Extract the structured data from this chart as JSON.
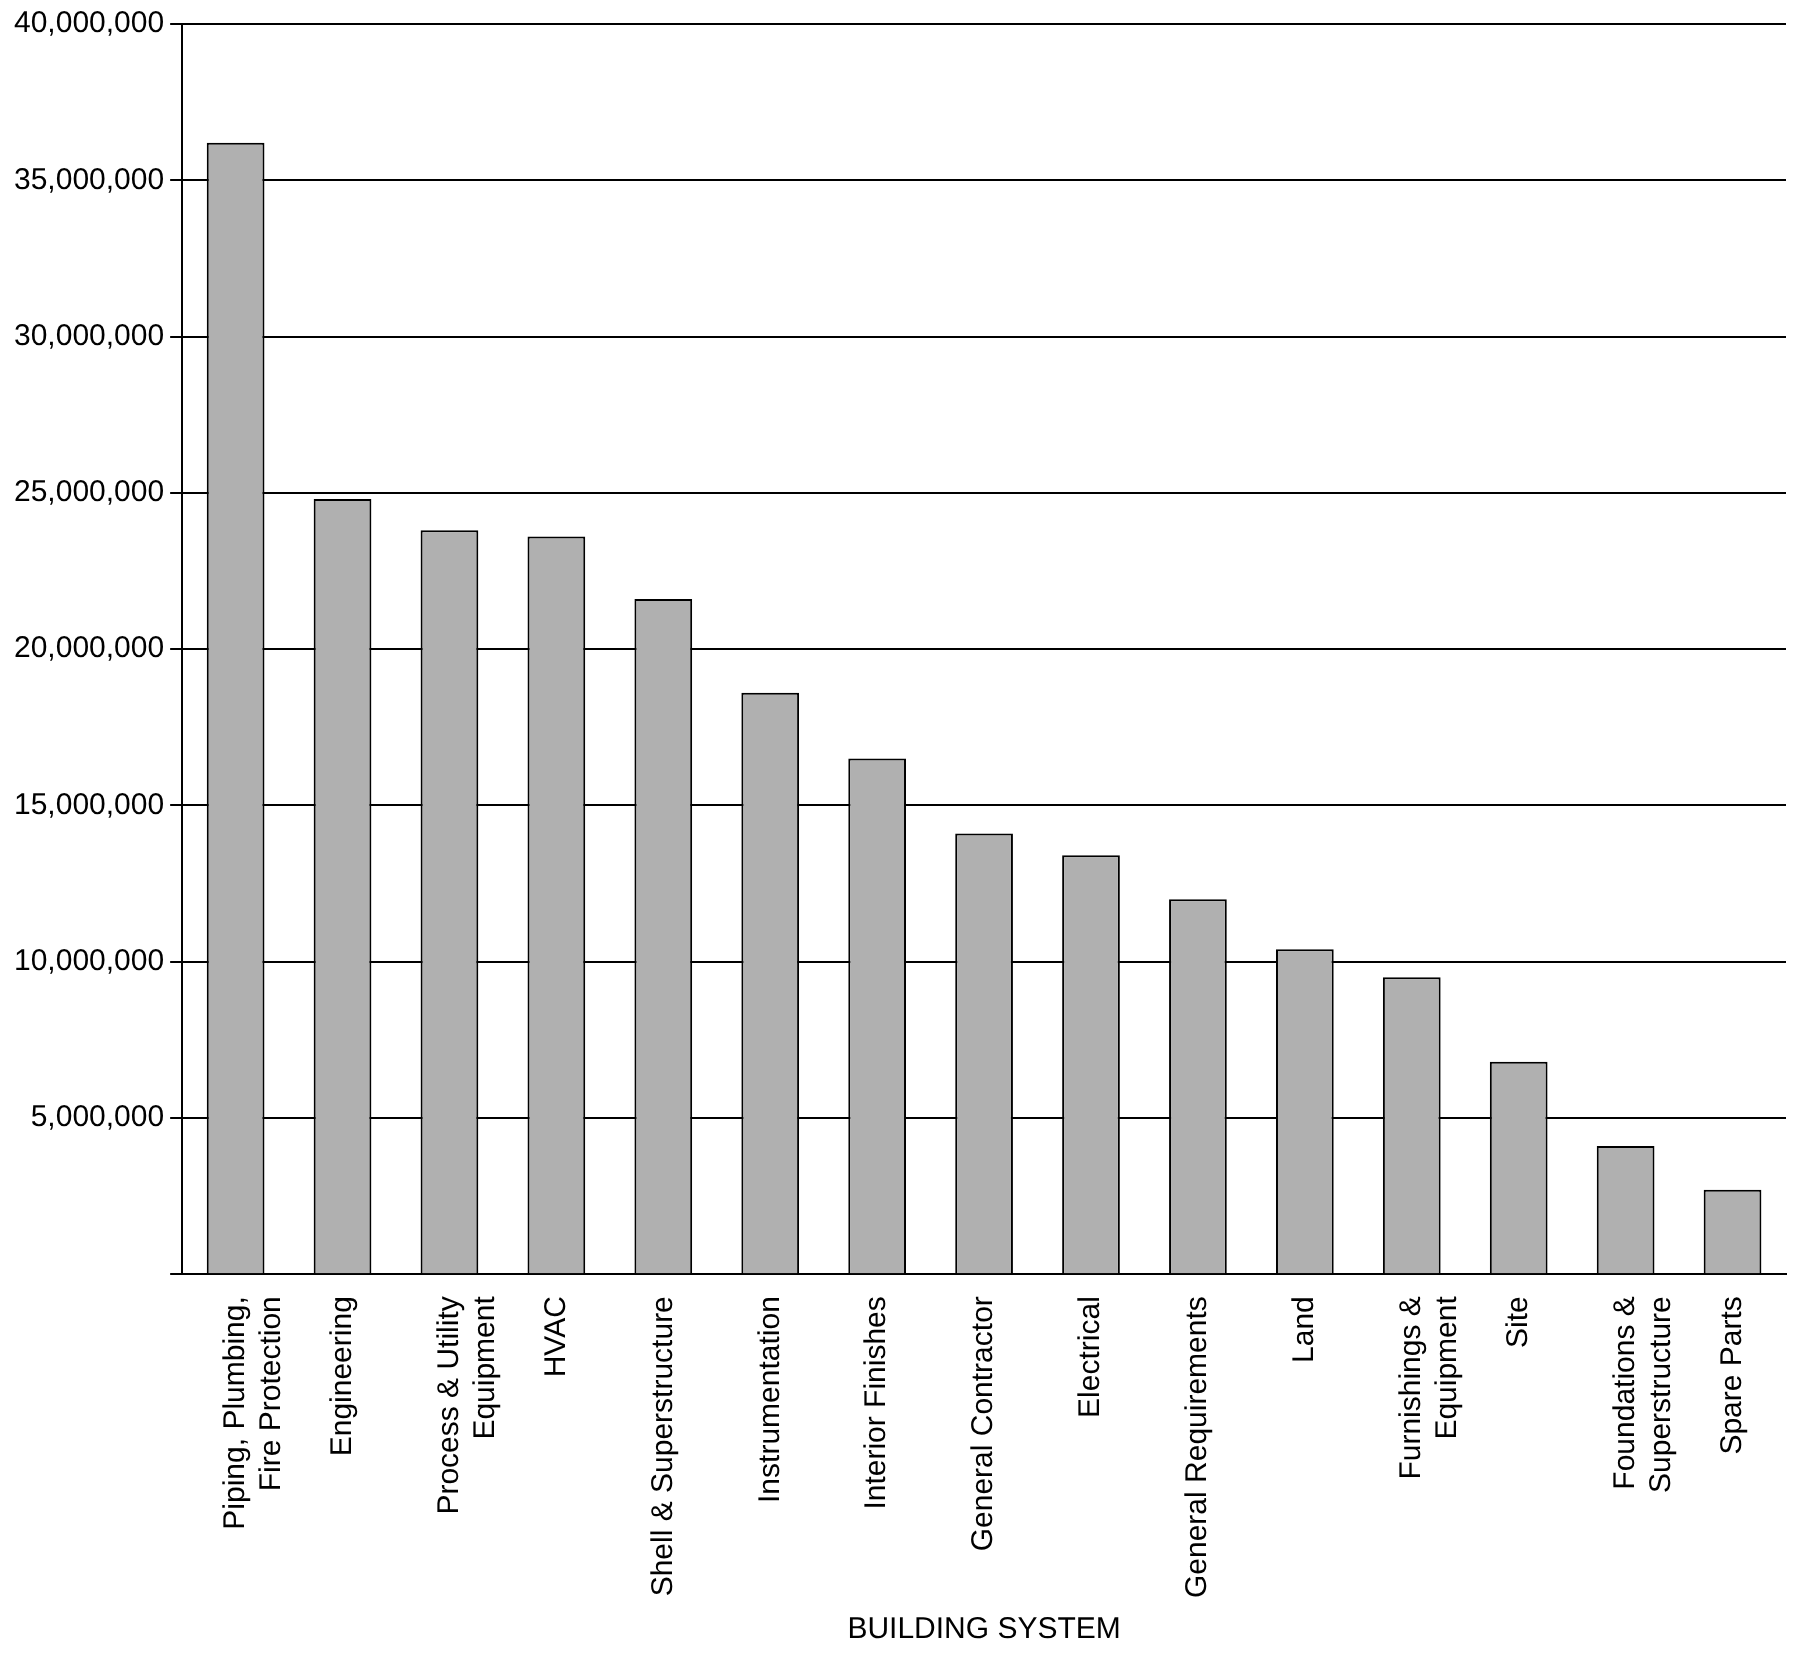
{
  "chart_data": {
    "type": "bar",
    "xlabel": "BUILDING SYSTEM",
    "categories": [
      "Piping, Plumbing, Fire Protection",
      "Engineering",
      "Process & Utility Equipment",
      "HVAC",
      "Shell & Superstructure",
      "Instrumentation",
      "Interior Finishes",
      "General Contractor",
      "Electrical",
      "General Requirements",
      "Land",
      "Furnishings & Equipment",
      "Site",
      "Foundations & Superstructure",
      "Spare Parts"
    ],
    "values": [
      36200000,
      24800000,
      23800000,
      23600000,
      21600000,
      18600000,
      16500000,
      14100000,
      13400000,
      12000000,
      10400000,
      9500000,
      6800000,
      4100000,
      2700000
    ],
    "color": "#b0b0b0",
    "ylim": [
      0,
      40000000
    ],
    "yticks": [
      {
        "value": 0,
        "label": null
      },
      {
        "value": 5000000,
        "label": "5,000,000"
      },
      {
        "value": 10000000,
        "label": "10,000,000"
      },
      {
        "value": 15000000,
        "label": "15,000,000"
      },
      {
        "value": 20000000,
        "label": "20,000,000"
      },
      {
        "value": 25000000,
        "label": "25,000,000"
      },
      {
        "value": 30000000,
        "label": "30,000,000"
      },
      {
        "value": 35000000,
        "label": "35,000,000"
      },
      {
        "value": 40000000,
        "label": "40,000,000"
      }
    ],
    "grid": "y"
  }
}
